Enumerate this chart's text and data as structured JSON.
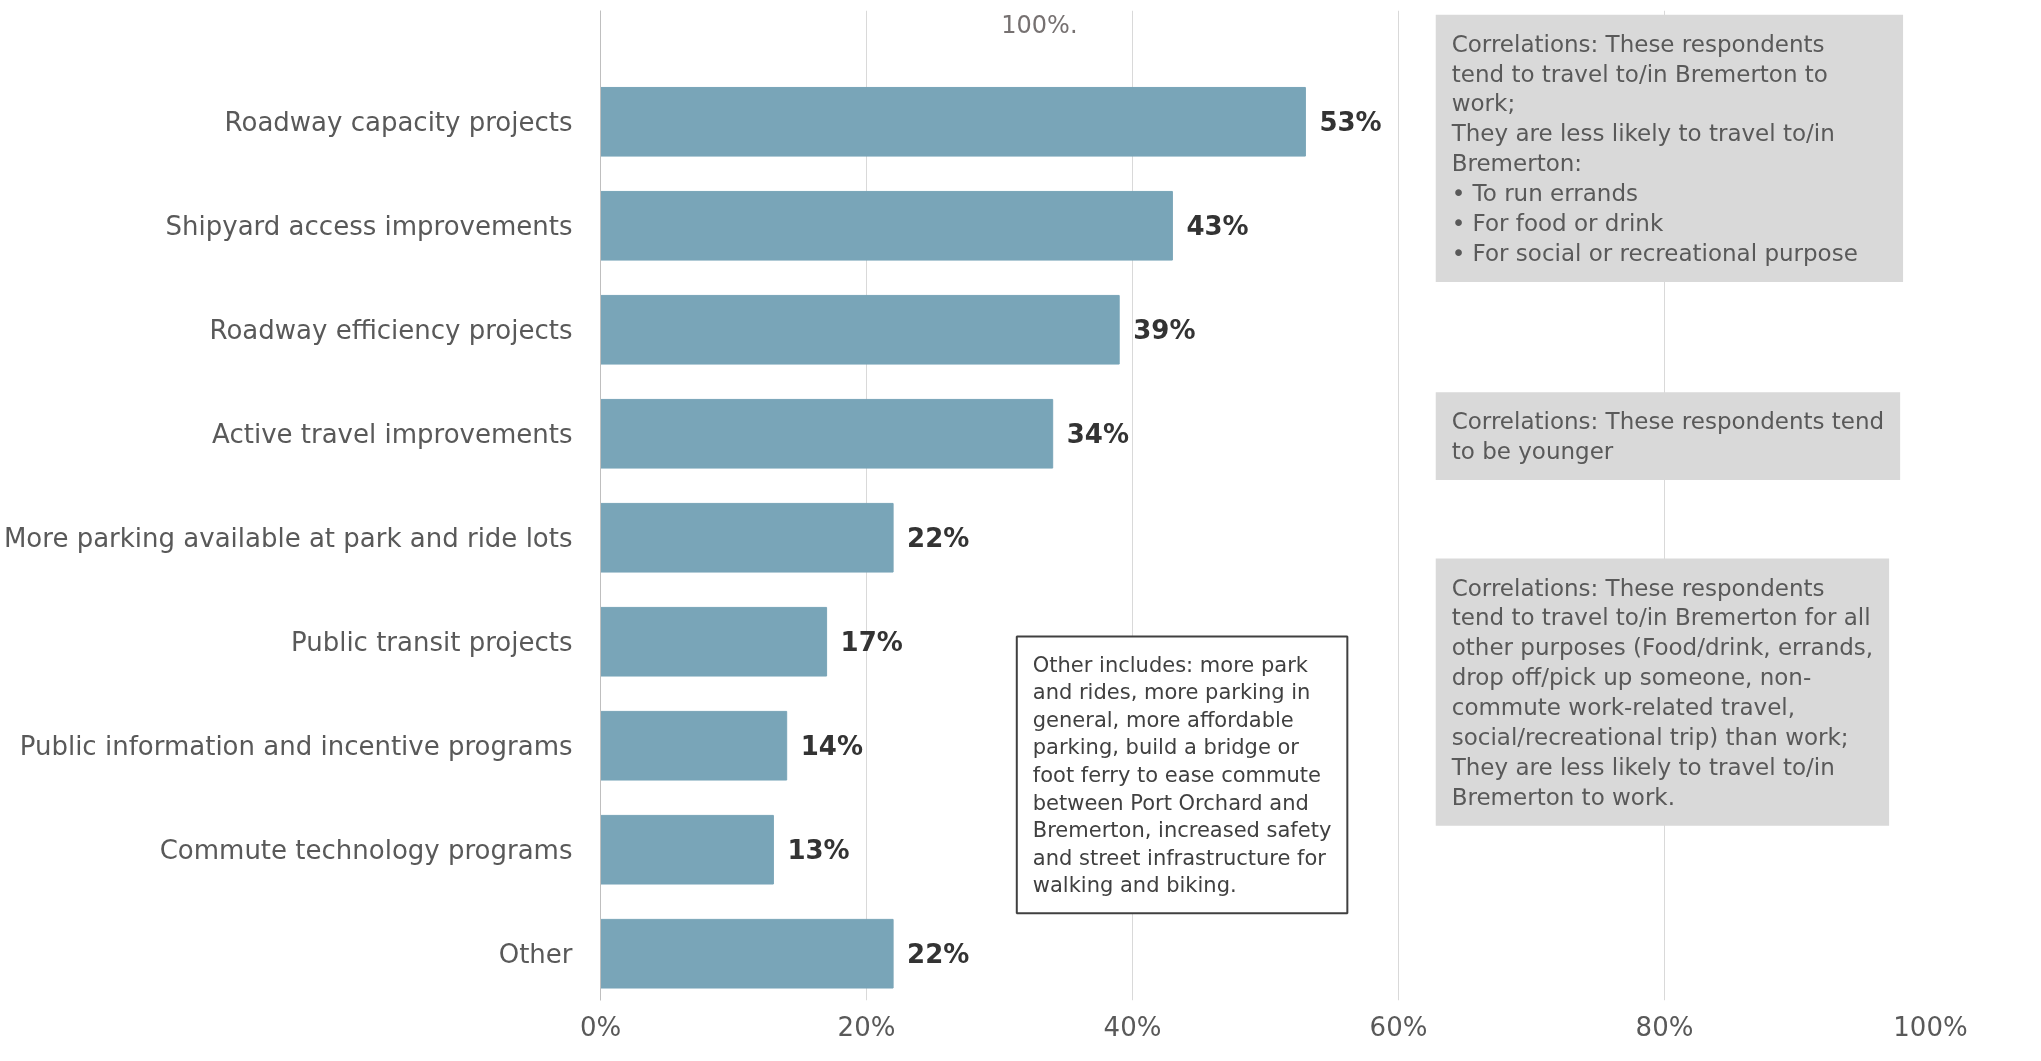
{
  "chart_data": {
    "type": "bar",
    "orientation": "horizontal",
    "subtitle": "100%.",
    "categories": [
      "Roadway capacity projects",
      "Shipyard access improvements",
      "Roadway efficiency projects",
      "Active travel improvements",
      "More parking available at park and ride lots",
      "Public transit projects",
      "Public information and incentive programs",
      "Commute technology programs",
      "Other"
    ],
    "values": [
      53,
      43,
      39,
      34,
      22,
      17,
      14,
      13,
      22
    ],
    "value_labels": [
      "53%",
      "43%",
      "39%",
      "34%",
      "22%",
      "17%",
      "14%",
      "13%",
      "22%"
    ],
    "color": "#79a5b8",
    "xlim": [
      0,
      100
    ],
    "xticks": [
      {
        "value": 0,
        "label": "0%"
      },
      {
        "value": 20,
        "label": "20%"
      },
      {
        "value": 40,
        "label": "40%"
      },
      {
        "value": 60,
        "label": "60%"
      },
      {
        "value": 80,
        "label": "80%"
      },
      {
        "value": 100,
        "label": "100%"
      }
    ],
    "grid": "x",
    "annotations": [
      "Correlations: These respondents\ntend to travel to/in Bremerton to\nwork;\nThey are less likely to travel to/in\nBremerton:\n•     To run errands\n•     For food or drink\n•     For social or recreational purpose",
      "Correlations: These respondents tend\nto be younger",
      "Correlations: These respondents\ntend to travel to/in Bremerton for all\nother purposes (Food/drink, errands,\ndrop off/pick up someone, non-\ncommute work-related travel,\nsocial/recreational trip) than work;\nThey are less likely to travel to/in\nBremerton to work.",
      "Other includes: more park\nand rides, more parking in\ngeneral, more affordable\nparking, build a bridge or\nfoot ferry to ease commute\nbetween Port Orchard and\nBremerton, increased safety\nand street infrastructure for\nwalking and biking."
    ]
  }
}
